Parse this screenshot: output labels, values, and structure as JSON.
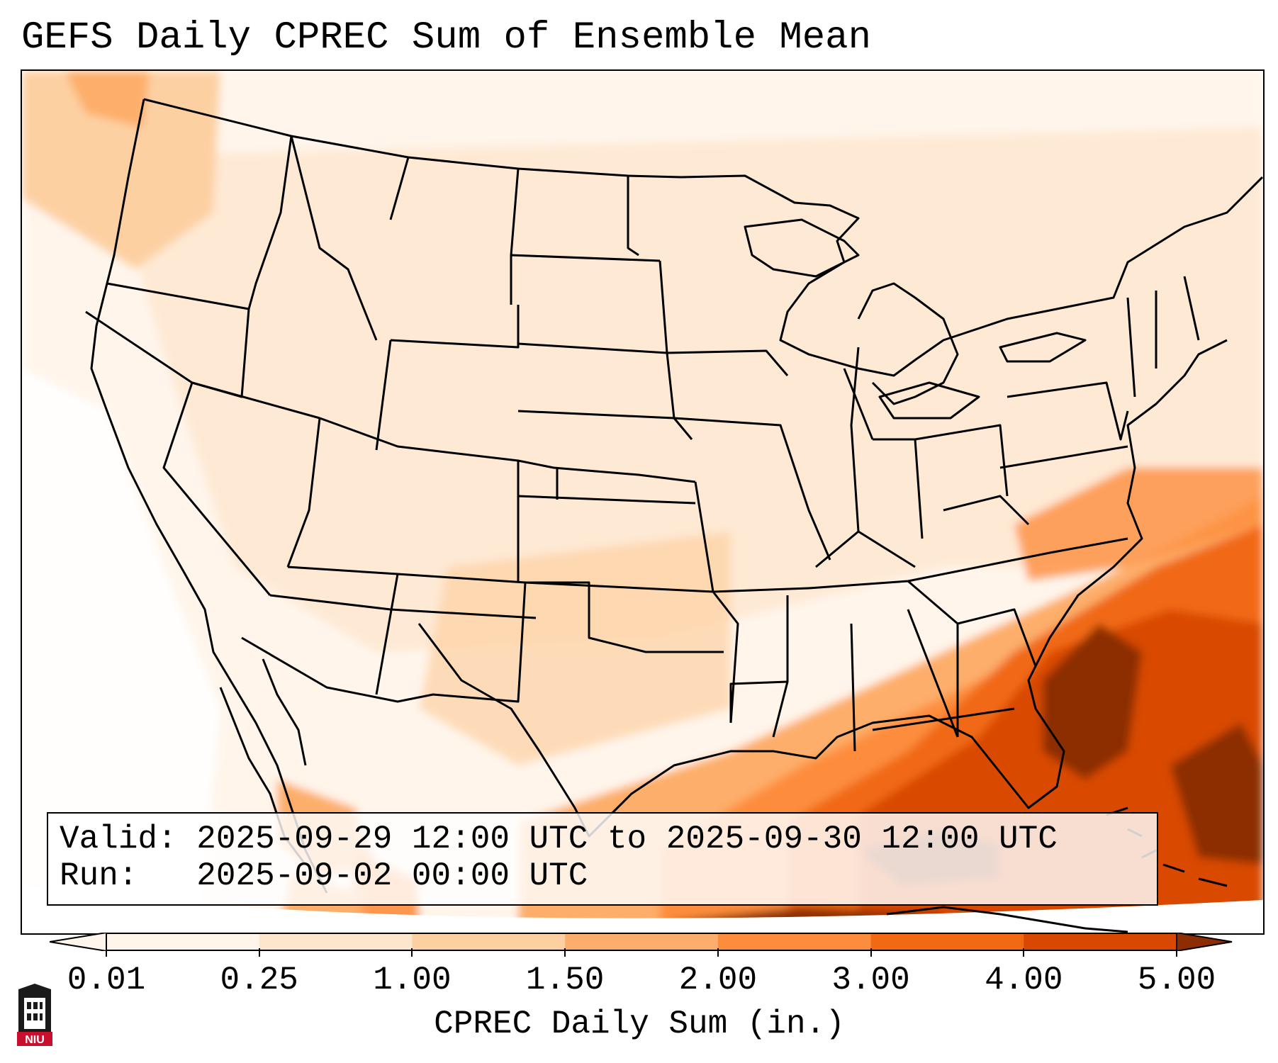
{
  "title": "GEFS Daily CPREC Sum of Ensemble Mean",
  "info": {
    "valid_label": "Valid:",
    "valid_value": "2025-09-29 12:00 UTC to 2025-09-30 12:00 UTC",
    "run_label": "Run:",
    "run_value": "2025-09-02 00:00 UTC"
  },
  "colorbar": {
    "label": "CPREC Daily Sum (in.)",
    "ticks": [
      "0.01",
      "0.25",
      "1.00",
      "1.50",
      "2.00",
      "3.00",
      "4.00",
      "5.00"
    ],
    "colors": [
      "#fff5eb",
      "#fee6ce",
      "#fdd0a2",
      "#fdae6b",
      "#fd8d3c",
      "#f16913",
      "#d94801",
      "#8c2d04"
    ]
  },
  "logo": {
    "text": "NIU",
    "icon": "university-tower-icon",
    "color": "#c8102e"
  }
}
